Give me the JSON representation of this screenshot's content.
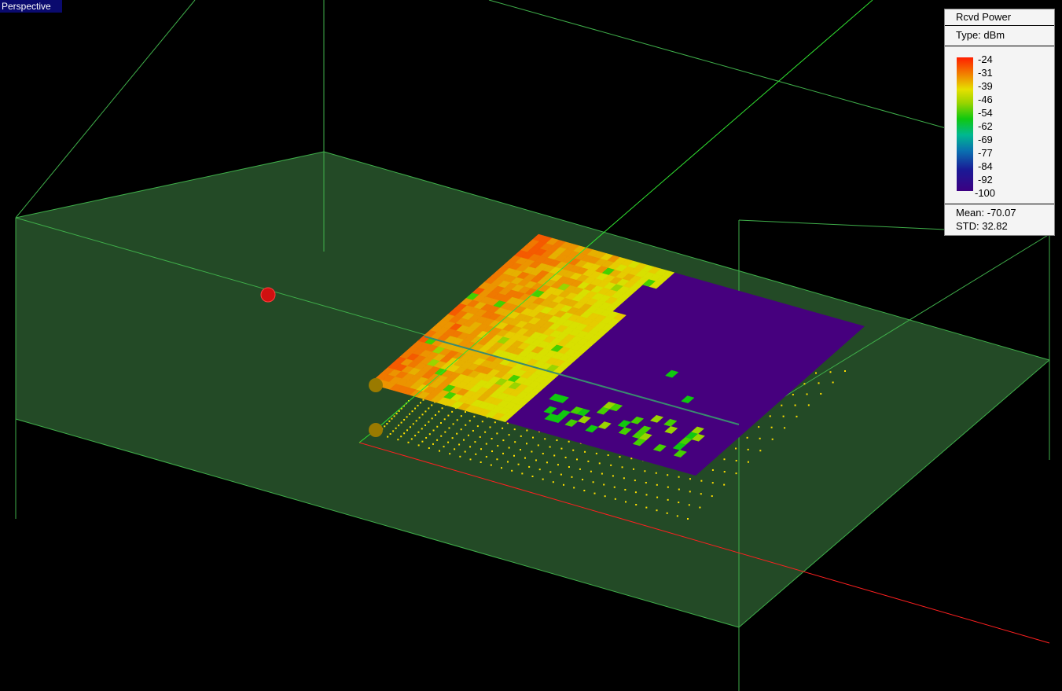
{
  "view": {
    "label": "Perspective"
  },
  "legend": {
    "title": "Rcvd Power",
    "type": "Type: dBm",
    "ticks": [
      "-24",
      "-31",
      "-39",
      "-46",
      "-54",
      "-62",
      "-69",
      "-77",
      "-84",
      "-92",
      "-100"
    ],
    "mean": "Mean: -70.07",
    "std": "STD: 32.82",
    "range_dbm": [
      -100,
      -24
    ]
  },
  "colors": {
    "background": "#000000",
    "ground": "#234a26",
    "wireframe": "#3fae4a",
    "axis_x": "#ff2020",
    "axis_y": "#30e030",
    "no_signal": "#46007e",
    "receiver_points": "#ffe000",
    "transmitter": "#d01010",
    "marker": "#9a7a00"
  }
}
